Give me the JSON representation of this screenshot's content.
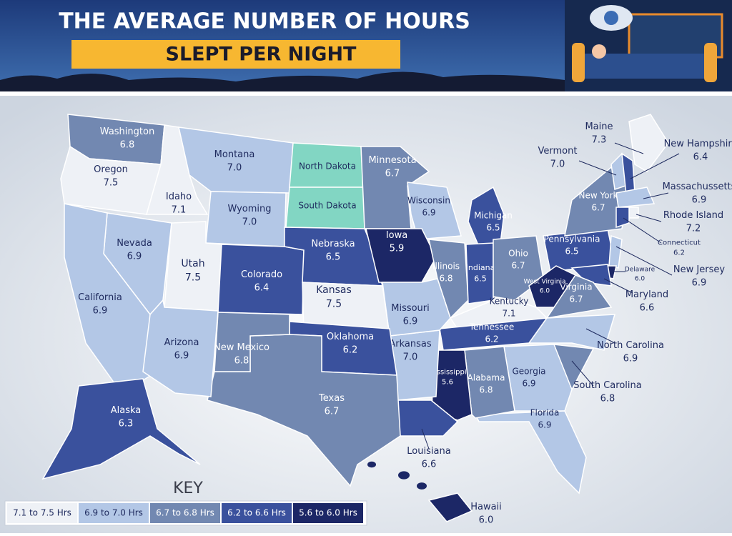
{
  "header": {
    "title_line1": "THE AVERAGE NUMBER OF HOURS",
    "title_line2": "SLEPT PER NIGHT"
  },
  "states": [
    {
      "name": "Washington",
      "value": "6.8",
      "color": "#7288b1"
    },
    {
      "name": "Oregon",
      "value": "7.5",
      "color": "#eef1f6"
    },
    {
      "name": "Idaho",
      "value": "7.1",
      "color": "#eef1f6"
    },
    {
      "name": "Montana",
      "value": "7.0",
      "color": "#b3c7e6"
    },
    {
      "name": "North Dakota",
      "color": "#82d6c3"
    },
    {
      "name": "South Dakota",
      "color": "#82d6c3"
    },
    {
      "name": "Minnesota",
      "value": "6.7",
      "color": "#7288b1"
    },
    {
      "name": "Wisconsin",
      "value": "6.9",
      "color": "#b3c7e6"
    },
    {
      "name": "Michigan",
      "value": "6.5",
      "color": "#3a519d"
    },
    {
      "name": "Wyoming",
      "value": "7.0",
      "color": "#b3c7e6"
    },
    {
      "name": "Nevada",
      "value": "6.9",
      "color": "#b3c7e6"
    },
    {
      "name": "California",
      "value": "6.9",
      "color": "#b3c7e6"
    },
    {
      "name": "Utah",
      "value": "7.5",
      "color": "#eef1f6"
    },
    {
      "name": "Colorado",
      "value": "6.4",
      "color": "#3a519d"
    },
    {
      "name": "Nebraska",
      "value": "6.5",
      "color": "#3a519d"
    },
    {
      "name": "Iowa",
      "value": "5.9",
      "color": "#1c2766"
    },
    {
      "name": "Illinois",
      "value": "6.8",
      "color": "#7288b1"
    },
    {
      "name": "Indiana",
      "value": "6.5",
      "color": "#3a519d"
    },
    {
      "name": "Ohio",
      "value": "6.7",
      "color": "#7288b1"
    },
    {
      "name": "Pennsylvania",
      "value": "6.5",
      "color": "#3a519d"
    },
    {
      "name": "New York",
      "value": "6.7",
      "color": "#7288b1"
    },
    {
      "name": "Maine",
      "value": "7.3",
      "color": "#eef1f6"
    },
    {
      "name": "Vermont",
      "value": "7.0",
      "color": "#b3c7e6"
    },
    {
      "name": "New Hampshire",
      "value": "6.4",
      "color": "#3a519d"
    },
    {
      "name": "Massachussetts",
      "value": "6.9",
      "color": "#b3c7e6"
    },
    {
      "name": "Rhode Island",
      "value": "7.2",
      "color": "#eef1f6"
    },
    {
      "name": "Connecticut",
      "value": "6.2",
      "color": "#3a519d"
    },
    {
      "name": "New Jersey",
      "value": "6.9",
      "color": "#b3c7e6"
    },
    {
      "name": "Delaware",
      "value": "6.0",
      "color": "#1c2766"
    },
    {
      "name": "Maryland",
      "value": "6.6",
      "color": "#3a519d"
    },
    {
      "name": "West Virginia",
      "value": "6.0",
      "color": "#1c2766"
    },
    {
      "name": "Virginia",
      "value": "6.7",
      "color": "#7288b1"
    },
    {
      "name": "Kentucky",
      "value": "7.1",
      "color": "#eef1f6"
    },
    {
      "name": "Tennessee",
      "value": "6.2",
      "color": "#3a519d"
    },
    {
      "name": "North Carolina",
      "value": "6.9",
      "color": "#b3c7e6"
    },
    {
      "name": "South Carolina",
      "value": "6.8",
      "color": "#7288b1"
    },
    {
      "name": "Georgia",
      "value": "6.9",
      "color": "#b3c7e6"
    },
    {
      "name": "Florida",
      "value": "6.9",
      "color": "#b3c7e6"
    },
    {
      "name": "Alabama",
      "value": "6.8",
      "color": "#7288b1"
    },
    {
      "name": "Mississippi",
      "value": "5.6",
      "color": "#1c2766"
    },
    {
      "name": "Louisiana",
      "value": "6.6",
      "color": "#3a519d"
    },
    {
      "name": "Arkansas",
      "value": "7.0",
      "color": "#b3c7e6"
    },
    {
      "name": "Missouri",
      "value": "6.9",
      "color": "#b3c7e6"
    },
    {
      "name": "Kansas",
      "value": "7.5",
      "color": "#eef1f6"
    },
    {
      "name": "Oklahoma",
      "value": "6.2",
      "color": "#3a519d"
    },
    {
      "name": "Texas",
      "value": "6.7",
      "color": "#7288b1"
    },
    {
      "name": "New Mexico",
      "value": "6.8",
      "color": "#7288b1"
    },
    {
      "name": "Arizona",
      "value": "6.9",
      "color": "#b3c7e6"
    },
    {
      "name": "Alaska",
      "value": "6.3",
      "color": "#3a519d"
    },
    {
      "name": "Hawaii",
      "value": "6.0",
      "color": "#1c2766"
    }
  ],
  "key": {
    "title": "KEY",
    "items": [
      {
        "label": "7.1 to 7.5 Hrs",
        "color": "#eef1f6"
      },
      {
        "label": "6.9 to 7.0 Hrs",
        "color": "#b3c7e6"
      },
      {
        "label": "6.7 to 6.8 Hrs",
        "color": "#7288b1"
      },
      {
        "label": "6.2 to 6.6 Hrs",
        "color": "#3a519d"
      },
      {
        "label": "5.6 to 6.0 Hrs",
        "color": "#1c2766"
      }
    ]
  }
}
